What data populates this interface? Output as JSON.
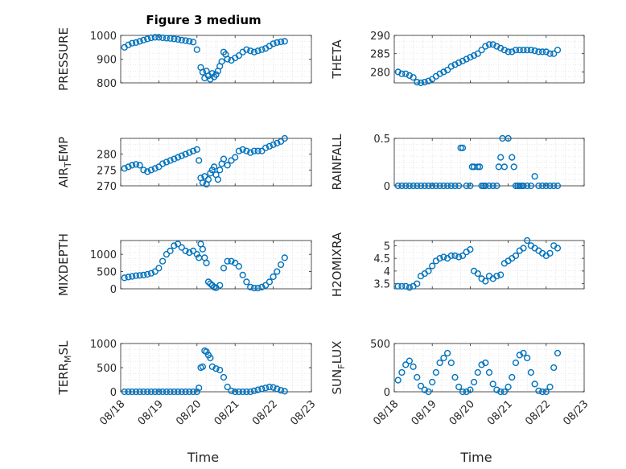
{
  "figure": {
    "title": "Figure 3 medium",
    "series_color": "#0072BD",
    "grid": true
  },
  "chart_data": [
    {
      "type": "scatter",
      "ylabel": "PRESSURE",
      "xlabel": "",
      "ylim": [
        800,
        1000
      ],
      "yticks": [
        800,
        900,
        1000
      ],
      "xticks": [
        "08/18",
        "08/19",
        "08/20",
        "08/21",
        "08/22",
        "08/23"
      ],
      "x": [
        0.1,
        0.2,
        0.3,
        0.4,
        0.5,
        0.6,
        0.7,
        0.8,
        0.9,
        1.0,
        1.1,
        1.2,
        1.3,
        1.4,
        1.5,
        1.6,
        1.7,
        1.8,
        1.9,
        2.0,
        2.1,
        2.15,
        2.2,
        2.25,
        2.3,
        2.35,
        2.4,
        2.45,
        2.5,
        2.55,
        2.6,
        2.65,
        2.7,
        2.75,
        2.8,
        2.9,
        3.0,
        3.1,
        3.2,
        3.3,
        3.4,
        3.5,
        3.6,
        3.7,
        3.8,
        3.9,
        4.0,
        4.1,
        4.2,
        4.3
      ],
      "y": [
        950,
        960,
        967,
        970,
        975,
        980,
        985,
        990,
        992,
        992,
        990,
        988,
        987,
        985,
        983,
        980,
        978,
        975,
        972,
        940,
        865,
        845,
        820,
        850,
        830,
        815,
        840,
        825,
        835,
        850,
        870,
        890,
        930,
        920,
        900,
        895,
        905,
        915,
        930,
        940,
        935,
        930,
        935,
        940,
        945,
        955,
        965,
        970,
        973,
        975
      ]
    },
    {
      "type": "scatter",
      "ylabel": "THETA",
      "xlabel": "",
      "ylim": [
        277,
        290
      ],
      "yticks": [
        280,
        285,
        290
      ],
      "xticks": [
        "08/18",
        "08/19",
        "08/20",
        "08/21",
        "08/22",
        "08/23"
      ],
      "x": [
        0.1,
        0.2,
        0.3,
        0.4,
        0.5,
        0.6,
        0.7,
        0.8,
        0.9,
        1.0,
        1.1,
        1.2,
        1.3,
        1.4,
        1.5,
        1.6,
        1.7,
        1.8,
        1.9,
        2.0,
        2.1,
        2.2,
        2.3,
        2.4,
        2.5,
        2.6,
        2.7,
        2.8,
        2.9,
        3.0,
        3.1,
        3.2,
        3.3,
        3.4,
        3.5,
        3.6,
        3.7,
        3.8,
        3.9,
        4.0,
        4.1,
        4.2,
        4.3
      ],
      "y": [
        280,
        279.5,
        279.5,
        279,
        278.5,
        277.2,
        277,
        277.2,
        277.5,
        278,
        278.8,
        279.5,
        280,
        280.5,
        281.5,
        282,
        282.5,
        283,
        283.5,
        284,
        284.5,
        285,
        286,
        287,
        287.5,
        287.5,
        287,
        286.5,
        286,
        285.5,
        285.5,
        286,
        286,
        286,
        286,
        286,
        285.8,
        285.5,
        285.5,
        285.5,
        285,
        285,
        286
      ]
    },
    {
      "type": "scatter",
      "ylabel": "AIR_TEMP",
      "xlabel": "",
      "ylim": [
        270,
        285
      ],
      "yticks": [
        270,
        275,
        280
      ],
      "xticks": [
        "08/18",
        "08/19",
        "08/20",
        "08/21",
        "08/22",
        "08/23"
      ],
      "x": [
        0.1,
        0.2,
        0.3,
        0.4,
        0.5,
        0.6,
        0.7,
        0.8,
        0.9,
        1.0,
        1.1,
        1.2,
        1.3,
        1.4,
        1.5,
        1.6,
        1.7,
        1.8,
        1.9,
        2.0,
        2.05,
        2.1,
        2.15,
        2.2,
        2.25,
        2.3,
        2.35,
        2.4,
        2.45,
        2.5,
        2.55,
        2.6,
        2.65,
        2.7,
        2.8,
        2.9,
        3.0,
        3.1,
        3.2,
        3.3,
        3.4,
        3.5,
        3.6,
        3.7,
        3.8,
        3.9,
        4.0,
        4.1,
        4.2,
        4.3
      ],
      "y": [
        275.5,
        276,
        276.5,
        276.8,
        276.5,
        275,
        274.5,
        275,
        275.5,
        276,
        277,
        277.5,
        278,
        278.5,
        279,
        279.5,
        280,
        280.5,
        281,
        281.5,
        278,
        272.5,
        271,
        273,
        270.5,
        272,
        274,
        275,
        276,
        273.5,
        272,
        275,
        277,
        278.5,
        276.5,
        278,
        279,
        281,
        281.5,
        281,
        280.5,
        281,
        281,
        281,
        282,
        282.5,
        283,
        283.5,
        284,
        285
      ]
    },
    {
      "type": "scatter",
      "ylabel": "RAINFALL",
      "xlabel": "",
      "ylim": [
        0,
        0.5
      ],
      "yticks": [
        0,
        0.5
      ],
      "xticks": [
        "08/18",
        "08/19",
        "08/20",
        "08/21",
        "08/22",
        "08/23"
      ],
      "x": [
        0.1,
        0.2,
        0.3,
        0.4,
        0.5,
        0.6,
        0.7,
        0.8,
        0.9,
        1.0,
        1.1,
        1.2,
        1.3,
        1.4,
        1.5,
        1.6,
        1.7,
        1.75,
        1.8,
        1.9,
        2.0,
        2.05,
        2.1,
        2.2,
        2.25,
        2.3,
        2.35,
        2.4,
        2.5,
        2.6,
        2.7,
        2.75,
        2.8,
        2.85,
        2.9,
        3.0,
        3.1,
        3.15,
        3.2,
        3.25,
        3.3,
        3.35,
        3.4,
        3.5,
        3.6,
        3.7,
        3.8,
        3.9,
        4.0,
        4.1,
        4.2,
        4.3
      ],
      "y": [
        0,
        0,
        0,
        0,
        0,
        0,
        0,
        0,
        0,
        0,
        0,
        0,
        0,
        0,
        0,
        0,
        0,
        0.4,
        0.4,
        0,
        0,
        0.2,
        0.2,
        0.2,
        0.2,
        0,
        0,
        0,
        0,
        0,
        0,
        0.2,
        0.3,
        0.5,
        0.2,
        0.5,
        0.3,
        0.2,
        0,
        0,
        0,
        0,
        0,
        0,
        0,
        0.1,
        0,
        0,
        0,
        0,
        0,
        0
      ]
    },
    {
      "type": "scatter",
      "ylabel": "MIXDEPTH",
      "xlabel": "",
      "ylim": [
        0,
        1400
      ],
      "yticks": [
        0,
        500,
        1000
      ],
      "xticks": [
        "08/18",
        "08/19",
        "08/20",
        "08/21",
        "08/22",
        "08/23"
      ],
      "x": [
        0.1,
        0.2,
        0.3,
        0.4,
        0.5,
        0.6,
        0.7,
        0.8,
        0.9,
        1.0,
        1.1,
        1.2,
        1.3,
        1.4,
        1.5,
        1.6,
        1.7,
        1.8,
        1.9,
        2.0,
        2.05,
        2.1,
        2.15,
        2.2,
        2.25,
        2.3,
        2.35,
        2.4,
        2.45,
        2.5,
        2.6,
        2.7,
        2.8,
        2.9,
        3.0,
        3.1,
        3.2,
        3.3,
        3.4,
        3.5,
        3.6,
        3.7,
        3.8,
        3.9,
        4.0,
        4.1,
        4.2,
        4.3
      ],
      "y": [
        320,
        340,
        360,
        380,
        390,
        400,
        420,
        450,
        500,
        600,
        800,
        1000,
        1100,
        1250,
        1300,
        1200,
        1100,
        1050,
        1100,
        1000,
        900,
        1300,
        1150,
        900,
        750,
        200,
        150,
        100,
        50,
        30,
        100,
        600,
        800,
        800,
        750,
        650,
        400,
        200,
        50,
        20,
        20,
        50,
        100,
        200,
        350,
        500,
        700,
        900
      ]
    },
    {
      "type": "scatter",
      "ylabel": "H2OMIXRA",
      "xlabel": "",
      "ylim": [
        3.3,
        5.2
      ],
      "yticks": [
        3.5,
        4,
        4.5,
        5
      ],
      "xticks": [
        "08/18",
        "08/19",
        "08/20",
        "08/21",
        "08/22",
        "08/23"
      ],
      "x": [
        0.1,
        0.2,
        0.3,
        0.4,
        0.5,
        0.6,
        0.7,
        0.8,
        0.9,
        1.0,
        1.1,
        1.2,
        1.3,
        1.4,
        1.5,
        1.6,
        1.7,
        1.8,
        1.9,
        2.0,
        2.1,
        2.2,
        2.3,
        2.4,
        2.5,
        2.6,
        2.7,
        2.8,
        2.9,
        3.0,
        3.1,
        3.2,
        3.3,
        3.4,
        3.5,
        3.6,
        3.7,
        3.8,
        3.9,
        4.0,
        4.1,
        4.2,
        4.3
      ],
      "y": [
        3.4,
        3.4,
        3.4,
        3.35,
        3.4,
        3.5,
        3.8,
        3.9,
        4.0,
        4.2,
        4.4,
        4.5,
        4.55,
        4.5,
        4.6,
        4.6,
        4.55,
        4.6,
        4.75,
        4.85,
        4.0,
        3.9,
        3.7,
        3.6,
        3.8,
        3.7,
        3.8,
        3.85,
        4.3,
        4.4,
        4.5,
        4.6,
        4.8,
        4.9,
        5.2,
        5.0,
        4.9,
        4.8,
        4.7,
        4.6,
        4.7,
        5.0,
        4.9
      ]
    },
    {
      "type": "scatter",
      "ylabel": "TERR_MSL",
      "xlabel": "Time",
      "ylim": [
        0,
        1000
      ],
      "yticks": [
        0,
        500,
        1000
      ],
      "xticks": [
        "08/18",
        "08/19",
        "08/20",
        "08/21",
        "08/22",
        "08/23"
      ],
      "x": [
        0.1,
        0.2,
        0.3,
        0.4,
        0.5,
        0.6,
        0.7,
        0.8,
        0.9,
        1.0,
        1.1,
        1.2,
        1.3,
        1.4,
        1.5,
        1.6,
        1.7,
        1.8,
        1.9,
        2.0,
        2.05,
        2.1,
        2.15,
        2.2,
        2.25,
        2.3,
        2.35,
        2.4,
        2.5,
        2.6,
        2.7,
        2.8,
        2.9,
        3.0,
        3.1,
        3.2,
        3.3,
        3.4,
        3.5,
        3.6,
        3.7,
        3.8,
        3.9,
        4.0,
        4.1,
        4.2,
        4.3
      ],
      "y": [
        0,
        0,
        0,
        0,
        0,
        0,
        0,
        0,
        0,
        0,
        0,
        0,
        0,
        0,
        0,
        0,
        0,
        0,
        0,
        0,
        80,
        500,
        520,
        850,
        830,
        760,
        700,
        520,
        480,
        450,
        300,
        100,
        20,
        0,
        0,
        0,
        0,
        0,
        20,
        40,
        60,
        80,
        100,
        90,
        60,
        30,
        10
      ]
    },
    {
      "type": "scatter",
      "ylabel": "SUN_FLUX",
      "xlabel": "Time",
      "ylim": [
        0,
        500
      ],
      "yticks": [
        0,
        500
      ],
      "xticks": [
        "08/18",
        "08/19",
        "08/20",
        "08/21",
        "08/22",
        "08/23"
      ],
      "x": [
        0.1,
        0.2,
        0.3,
        0.4,
        0.5,
        0.6,
        0.7,
        0.8,
        0.9,
        1.0,
        1.1,
        1.2,
        1.3,
        1.4,
        1.5,
        1.6,
        1.7,
        1.8,
        1.9,
        2.0,
        2.1,
        2.2,
        2.3,
        2.4,
        2.5,
        2.6,
        2.7,
        2.8,
        2.9,
        3.0,
        3.1,
        3.2,
        3.3,
        3.4,
        3.5,
        3.6,
        3.7,
        3.8,
        3.9,
        4.0,
        4.1,
        4.2,
        4.3
      ],
      "y": [
        120,
        200,
        280,
        320,
        260,
        150,
        60,
        20,
        0,
        100,
        200,
        300,
        350,
        400,
        300,
        150,
        50,
        0,
        0,
        20,
        100,
        200,
        280,
        300,
        200,
        80,
        20,
        0,
        0,
        50,
        150,
        300,
        380,
        400,
        350,
        200,
        80,
        10,
        0,
        0,
        50,
        250,
        400
      ]
    }
  ]
}
